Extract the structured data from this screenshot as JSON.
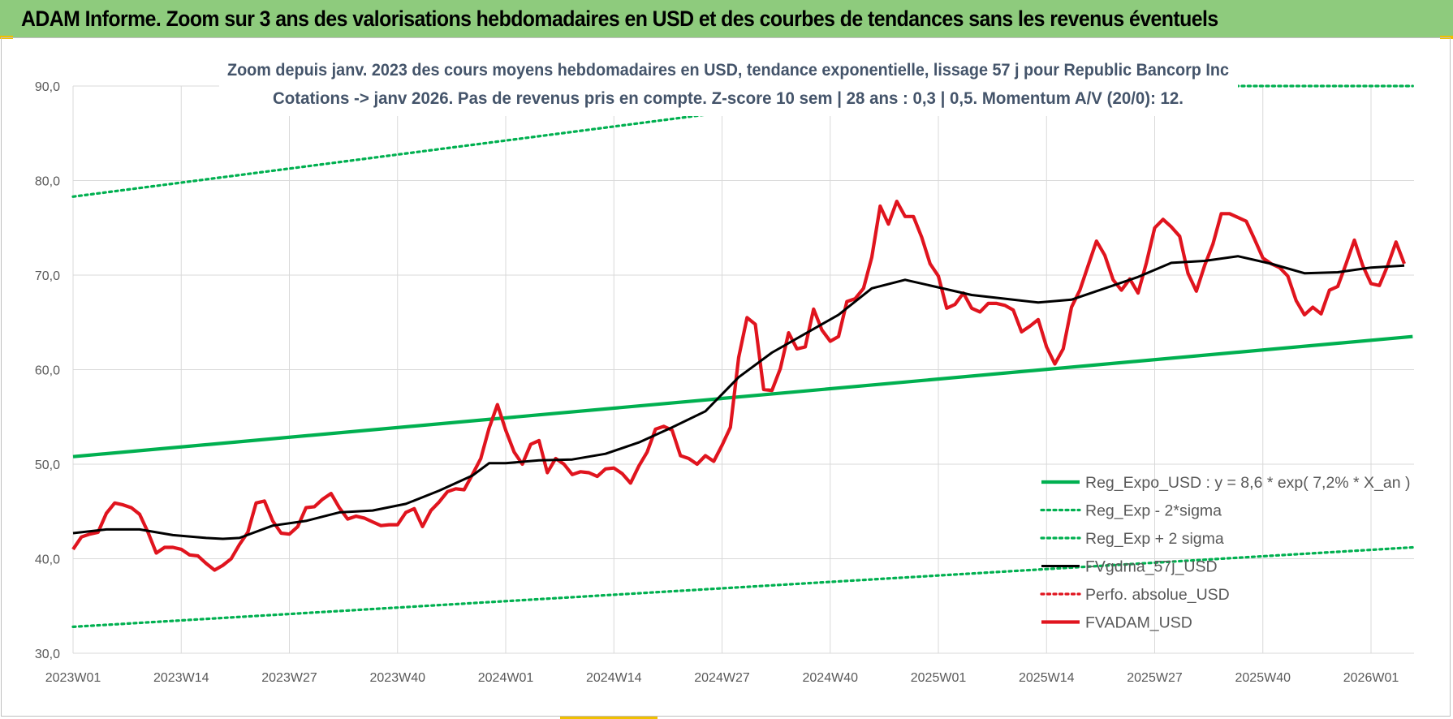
{
  "header": {
    "title": "ADAM Informe. Zoom sur 3 ans des valorisations hebdomadaires en USD et des courbes de tendances sans les revenus éventuels"
  },
  "chart_data": {
    "type": "line",
    "title_line1": "Zoom depuis janv. 2023 des cours moyens hebdomadaires en USD, tendance exponentielle, lissage 57 j pour Republic Bancorp Inc",
    "title_line2": "Cotations -> janv 2026. Pas de revenus pris en compte. Z-score 10 sem | 28 ans : 0,3 | 0,5. Momentum A/V (20/0): 12.",
    "ylim": [
      30,
      90
    ],
    "yticks": [
      "30,0",
      "40,0",
      "50,0",
      "60,0",
      "70,0",
      "80,0",
      "90,0"
    ],
    "xlim": [
      0,
      160
    ],
    "xticks": [
      {
        "label": "2023W01",
        "week": 0
      },
      {
        "label": "2023W14",
        "week": 13
      },
      {
        "label": "2023W27",
        "week": 26
      },
      {
        "label": "2023W40",
        "week": 39
      },
      {
        "label": "2024W01",
        "week": 52
      },
      {
        "label": "2024W14",
        "week": 65
      },
      {
        "label": "2024W27",
        "week": 78
      },
      {
        "label": "2024W40",
        "week": 91
      },
      {
        "label": "2025W01",
        "week": 104
      },
      {
        "label": "2025W14",
        "week": 117
      },
      {
        "label": "2025W27",
        "week": 130
      },
      {
        "label": "2025W40",
        "week": 143
      },
      {
        "label": "2026W01",
        "week": 156
      }
    ],
    "grid": true,
    "legend_position": "bottom-right",
    "series": [
      {
        "name": "Reg_Expo_USD : y = 8,6 * exp( 7,2% * X_an )",
        "color": "#00b050",
        "style": "solid-thick",
        "x": [
          0,
          161
        ],
        "y": [
          50.8,
          63.5
        ]
      },
      {
        "name": "Reg_Exp - 2*sigma",
        "color": "#00b050",
        "style": "dotted",
        "x": [
          0,
          161
        ],
        "y": [
          32.8,
          41.2
        ]
      },
      {
        "name": "Reg_Exp + 2 sigma",
        "color": "#00b050",
        "style": "dotted",
        "x": [
          0,
          78,
          138,
          161
        ],
        "y": [
          78.3,
          87.2,
          90.0,
          90.0
        ]
      },
      {
        "name": "FVgdma_57j_USD",
        "color": "#000000",
        "style": "solid",
        "x": [
          0,
          4,
          8,
          12,
          16,
          18,
          20,
          24,
          28,
          32,
          36,
          40,
          44,
          48,
          50,
          52,
          56,
          60,
          64,
          68,
          72,
          76,
          80,
          84,
          88,
          92,
          96,
          100,
          104,
          108,
          112,
          116,
          120,
          124,
          128,
          132,
          136,
          140,
          144,
          148,
          152,
          156,
          160
        ],
        "y": [
          42.7,
          43.1,
          43.1,
          42.5,
          42.2,
          42.1,
          42.2,
          43.5,
          44.0,
          44.9,
          45.1,
          45.8,
          47.2,
          48.8,
          50.1,
          50.1,
          50.4,
          50.5,
          51.1,
          52.3,
          53.9,
          55.6,
          59.2,
          61.8,
          63.8,
          65.8,
          68.6,
          69.5,
          68.7,
          67.9,
          67.5,
          67.1,
          67.4,
          68.6,
          69.8,
          71.3,
          71.5,
          72.0,
          71.2,
          70.2,
          70.3,
          70.8,
          71.0
        ]
      },
      {
        "name": "Perfo. absolue_USD",
        "color": "#e0141e",
        "style": "dotted",
        "x": [],
        "y": []
      },
      {
        "name": "FVADAM_USD",
        "color": "#e0141e",
        "style": "solid-thick",
        "x": [
          0,
          1,
          2,
          3,
          4,
          5,
          6,
          7,
          8,
          9,
          10,
          11,
          12,
          13,
          14,
          15,
          16,
          17,
          18,
          19,
          20,
          21,
          22,
          23,
          24,
          25,
          26,
          27,
          28,
          29,
          30,
          31,
          32,
          33,
          34,
          35,
          36,
          37,
          38,
          39,
          40,
          41,
          42,
          43,
          44,
          45,
          46,
          47,
          48,
          49,
          50,
          51,
          52,
          53,
          54,
          55,
          56,
          57,
          58,
          59,
          60,
          61,
          62,
          63,
          64,
          65,
          66,
          67,
          68,
          69,
          70,
          71,
          72,
          73,
          74,
          75,
          76,
          77,
          78,
          79,
          80,
          81,
          82,
          83,
          84,
          85,
          86,
          87,
          88,
          89,
          90,
          91,
          92,
          93,
          94,
          95,
          96,
          97,
          98,
          99,
          100,
          101,
          102,
          103,
          104,
          105,
          106,
          107,
          108,
          109,
          110,
          111,
          112,
          113,
          114,
          115,
          116,
          117,
          118,
          119,
          120,
          121,
          122,
          123,
          124,
          125,
          126,
          127,
          128,
          129,
          130,
          131,
          132,
          133,
          134,
          135,
          136,
          137,
          138,
          139,
          140,
          141,
          142,
          143,
          144,
          145,
          146,
          147,
          148,
          149,
          150,
          151,
          152,
          153,
          154,
          155,
          156,
          157,
          158,
          159,
          160
        ],
        "y": [
          41.0,
          42.3,
          42.6,
          42.8,
          44.8,
          45.9,
          45.7,
          45.4,
          44.7,
          42.8,
          40.6,
          41.2,
          41.2,
          41.0,
          40.4,
          40.3,
          39.5,
          38.8,
          39.3,
          40.0,
          41.5,
          42.8,
          45.9,
          46.1,
          44.0,
          42.7,
          42.6,
          43.4,
          45.4,
          45.5,
          46.3,
          46.9,
          45.4,
          44.2,
          44.5,
          44.3,
          43.9,
          43.5,
          43.6,
          43.6,
          44.9,
          45.3,
          43.4,
          45.1,
          46.0,
          47.1,
          47.4,
          47.3,
          48.9,
          50.6,
          53.8,
          56.3,
          53.6,
          51.3,
          50.0,
          52.1,
          52.5,
          49.1,
          50.6,
          50.0,
          48.9,
          49.2,
          49.1,
          48.7,
          49.5,
          49.6,
          49.0,
          48.0,
          49.8,
          51.3,
          53.7,
          54.0,
          53.6,
          50.9,
          50.6,
          50.0,
          50.9,
          50.3,
          52.0,
          53.9,
          61.3,
          65.5,
          64.8,
          57.9,
          57.8,
          60.1,
          63.9,
          62.2,
          62.4,
          66.4,
          64.2,
          63.0,
          63.5,
          67.2,
          67.5,
          68.6,
          71.9,
          77.3,
          75.4,
          77.8,
          76.2,
          76.2,
          74.0,
          71.2,
          69.9,
          66.5,
          66.9,
          68.1,
          66.5,
          66.1,
          67.0,
          67.0,
          66.8,
          66.3,
          64.0,
          64.6,
          65.3,
          62.4,
          60.6,
          62.2,
          66.6,
          68.4,
          71.0,
          73.6,
          72.1,
          69.5,
          68.4,
          69.6,
          68.1,
          71.3,
          75.0,
          75.9,
          75.1,
          74.1,
          70.2,
          68.3,
          71.0,
          73.3,
          76.5,
          76.5,
          76.1,
          75.7,
          73.8,
          71.8,
          71.2,
          70.8,
          69.9,
          67.3,
          65.8,
          66.6,
          65.9,
          68.4,
          68.8,
          71.2,
          73.7,
          71.0,
          69.1,
          68.9,
          71.0,
          73.5,
          71.2
        ]
      }
    ]
  }
}
